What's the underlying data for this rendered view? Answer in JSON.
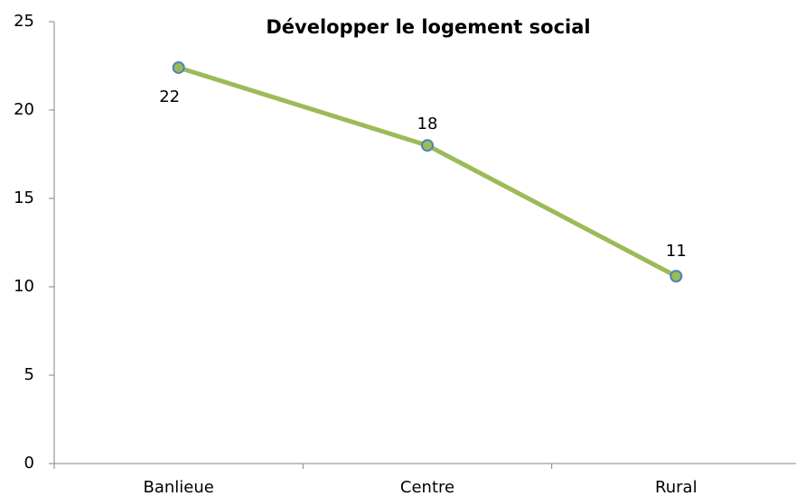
{
  "chart_data": {
    "type": "line",
    "title": "Développer le logement social",
    "categories": [
      "Banlieue",
      "Centre",
      "Rural"
    ],
    "series": [
      {
        "name": "Développer le logement social",
        "color": "#9bbb59",
        "marker_edge": "#4f81bd",
        "values": [
          22.4,
          18,
          10.6
        ],
        "value_labels": [
          "22",
          "18",
          "11"
        ]
      }
    ],
    "ylim": [
      0,
      25
    ],
    "yticks": [
      0,
      5,
      10,
      15,
      20,
      25
    ],
    "grid": false
  }
}
